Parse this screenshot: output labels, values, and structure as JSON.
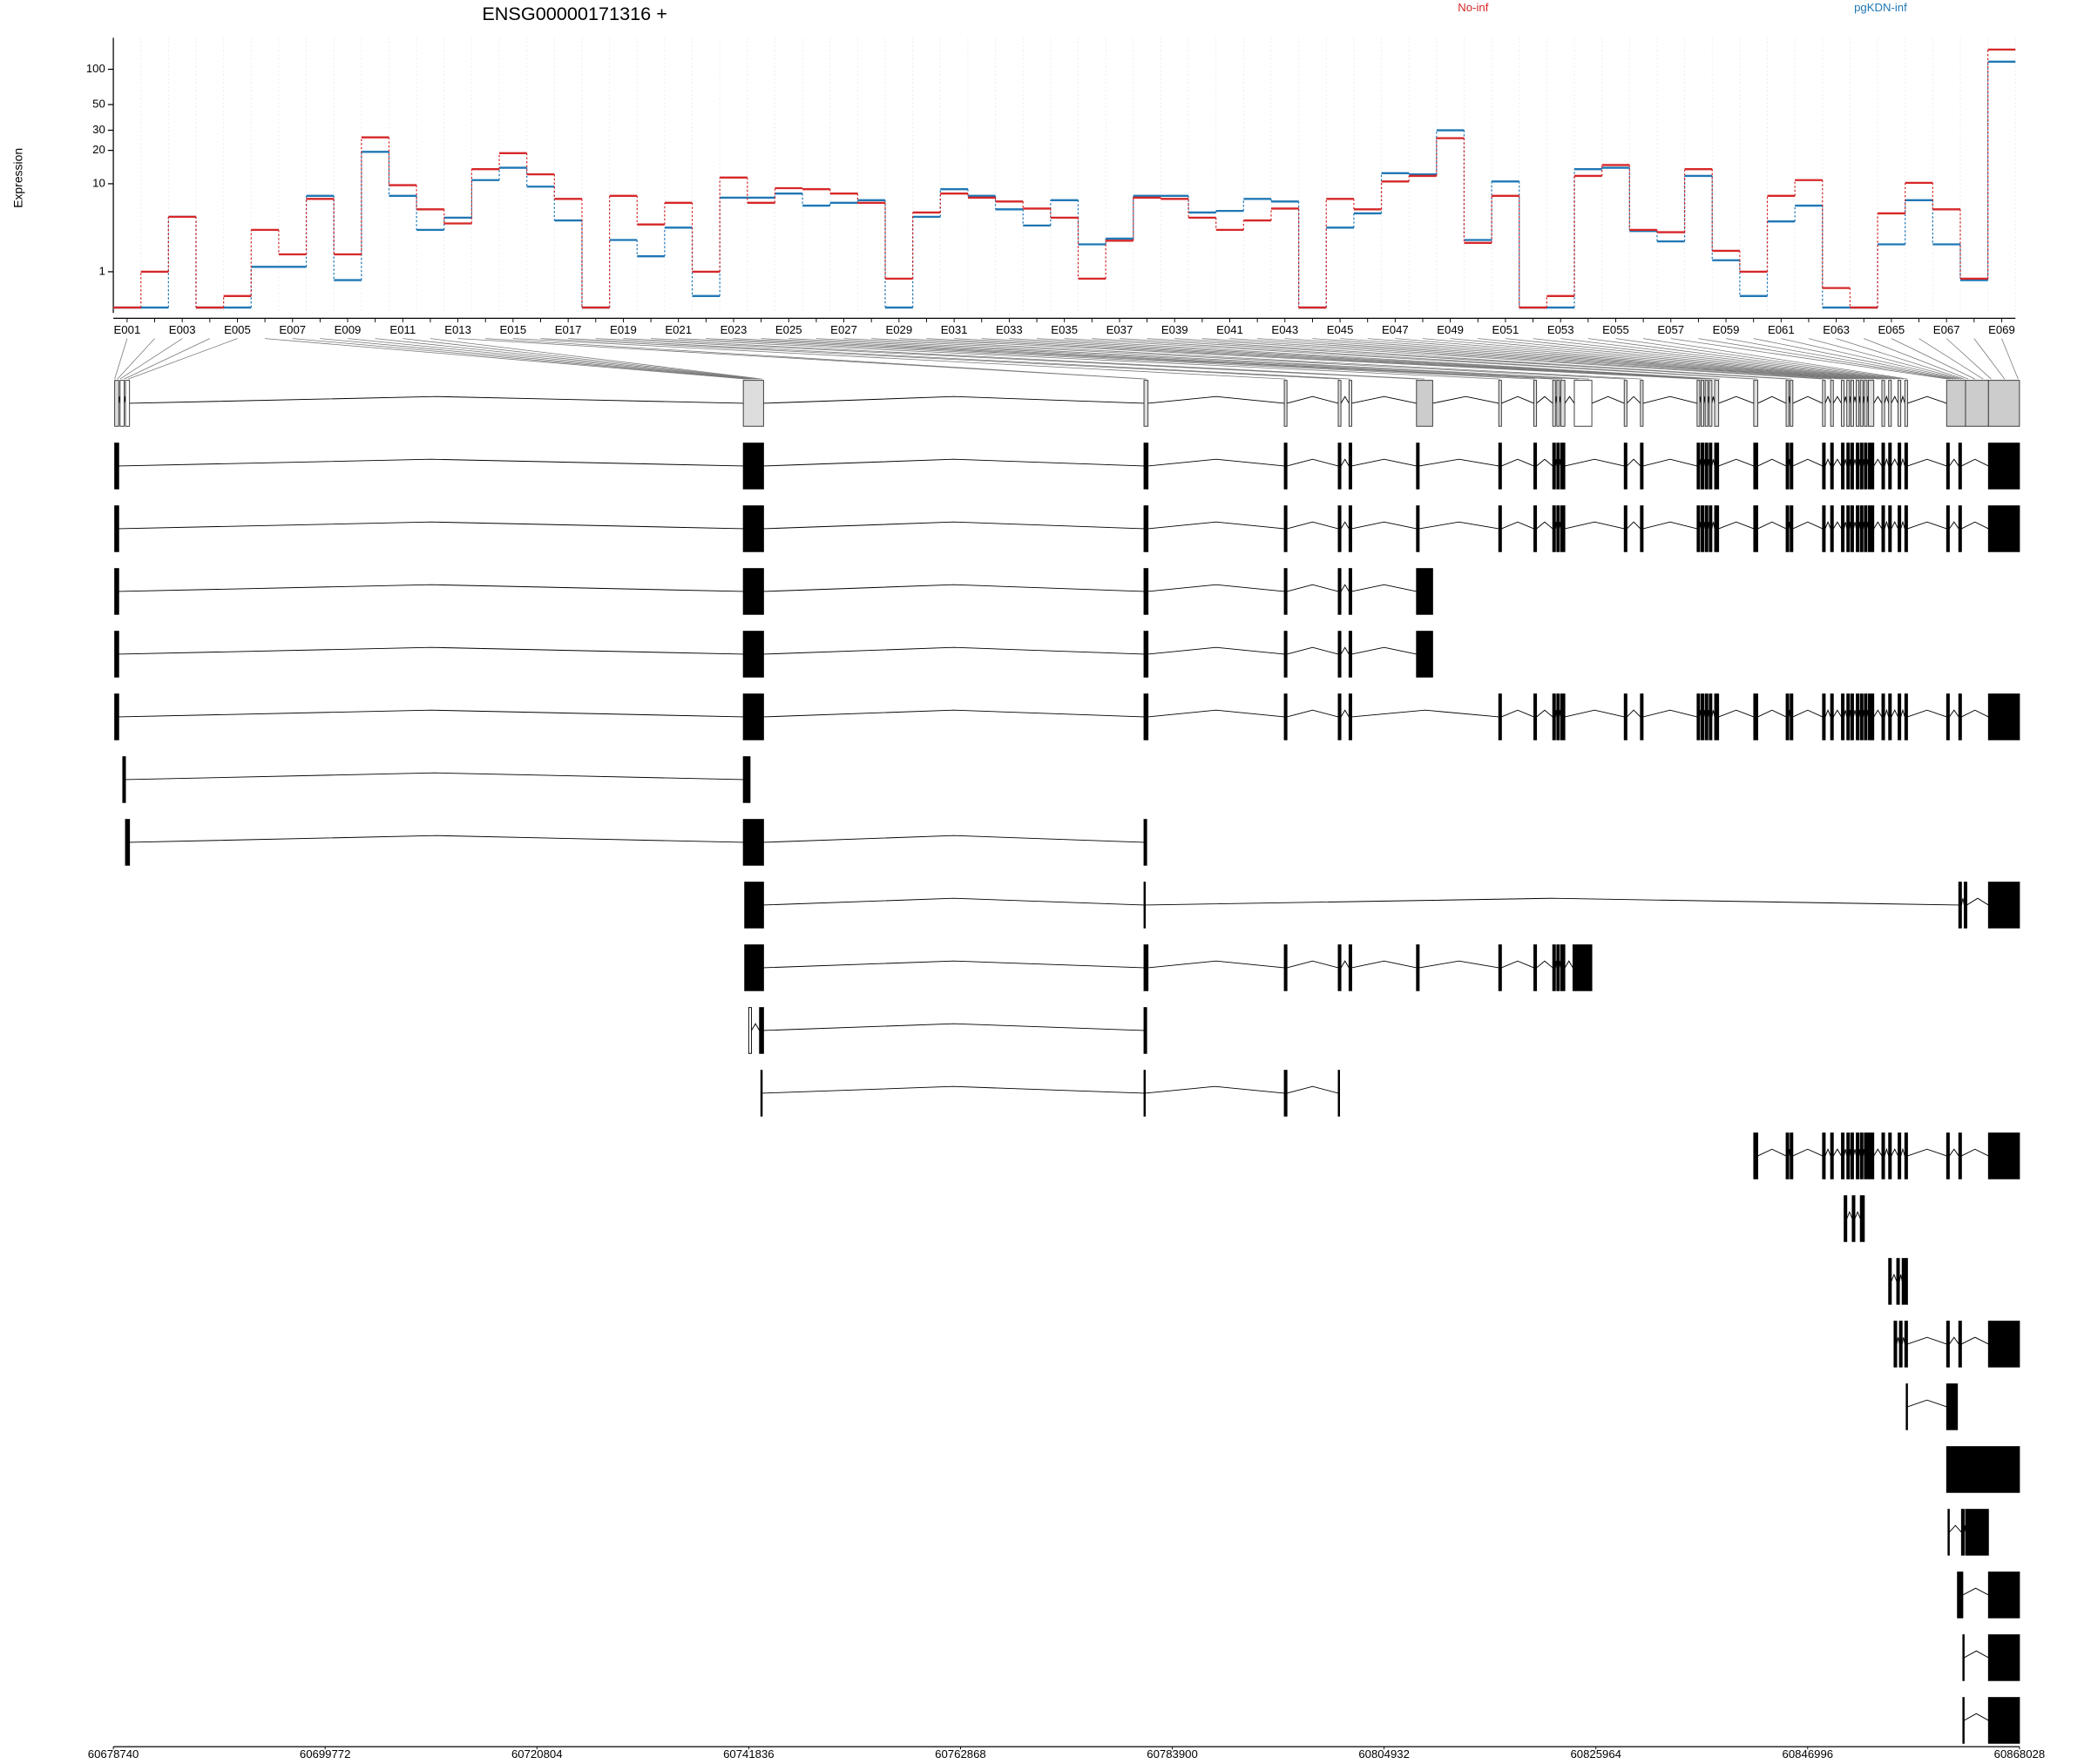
{
  "chart_data": [
    {
      "type": "line",
      "title": "ENSG00000171316 +",
      "y_label": "Expression",
      "scale": "log1p",
      "ylim": [
        0,
        185
      ],
      "yticks": [
        1,
        10,
        20,
        30,
        50,
        100
      ],
      "categories": [
        "E001",
        null,
        "E003",
        null,
        "E005",
        null,
        "E007",
        null,
        "E009",
        null,
        "E011",
        null,
        "E013",
        null,
        "E015",
        null,
        "E017",
        null,
        "E019",
        null,
        "E021",
        null,
        "E023",
        null,
        "E025",
        null,
        "E027",
        null,
        "E029",
        null,
        "E031",
        null,
        "E033",
        null,
        "E035",
        null,
        "E037",
        null,
        "E039",
        null,
        "E041",
        null,
        "E043",
        null,
        "E045",
        null,
        "E047",
        null,
        "E049",
        null,
        "E051",
        null,
        "E053",
        null,
        "E055",
        null,
        "E057",
        null,
        "E059",
        null,
        "E061",
        null,
        "E063",
        null,
        "E065",
        null,
        "E067",
        null,
        "E069"
      ],
      "series": [
        {
          "name": "No-inf",
          "color": "#d62728",
          "values": [
            0,
            1.0,
            4.8,
            0,
            0.25,
            3.5,
            1.8,
            7.2,
            1.8,
            26,
            9.7,
            5.7,
            4.1,
            13.6,
            18.9,
            12.2,
            7.2,
            0,
            7.7,
            4.0,
            6.6,
            1.0,
            11.4,
            6.6,
            9.1,
            8.9,
            8.1,
            6.6,
            0.75,
            5.3,
            8.1,
            7.4,
            6.8,
            5.8,
            4.7,
            0.75,
            2.65,
            7.4,
            7.2,
            4.7,
            3.5,
            4.4,
            5.8,
            0,
            7.2,
            5.7,
            10.5,
            11.8,
            25.6,
            2.5,
            7.7,
            0,
            0.25,
            11.8,
            14.8,
            3.5,
            3.3,
            13.6,
            2.0,
            1.0,
            7.7,
            10.8,
            0.46,
            0,
            5.2,
            10.2,
            5.7,
            0.75,
            147
          ]
        },
        {
          "name": "pgKDN-inf",
          "color": "#1f77b4",
          "values": [
            0,
            0,
            4.8,
            0,
            0,
            1.2,
            1.2,
            7.7,
            0.7,
            19.4,
            7.7,
            3.5,
            4.7,
            10.8,
            14,
            9.4,
            4.4,
            0,
            2.7,
            1.7,
            3.7,
            0.25,
            7.4,
            7.4,
            8.1,
            6.2,
            6.6,
            7.0,
            0,
            4.8,
            8.9,
            7.7,
            5.7,
            3.9,
            7.0,
            2.4,
            2.8,
            7.7,
            7.7,
            5.3,
            5.5,
            7.2,
            6.8,
            0,
            3.7,
            5.2,
            12.5,
            12.2,
            30,
            2.7,
            10.5,
            0,
            0,
            13.6,
            14,
            3.4,
            2.6,
            11.8,
            1.5,
            0.25,
            4.3,
            6.2,
            0,
            0,
            2.4,
            7.0,
            2.4,
            0.7,
            116
          ]
        }
      ]
    },
    {
      "type": "gene-model",
      "xlim": [
        60678740,
        60868028
      ],
      "xticks": [
        60678740,
        60699772,
        60720804,
        60741836,
        60762868,
        60783900,
        60804932,
        60825964,
        60846996,
        60868028
      ]
    }
  ]
}
